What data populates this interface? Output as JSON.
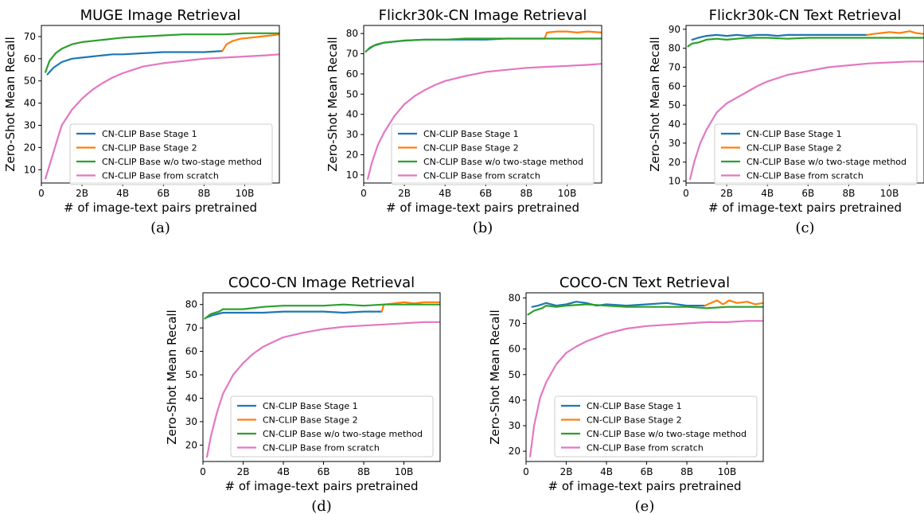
{
  "colors": {
    "stage1": "#1f77b4",
    "stage2": "#ff7f0e",
    "wo": "#2ca02c",
    "scratch": "#e377c2"
  },
  "chart_data": [
    {
      "id": "a",
      "type": "line",
      "title": "MUGE Image Retrieval",
      "caption": "(a)",
      "xlabel": "# of image-text pairs pretrained",
      "ylabel": "Zero-Shot Mean Recall",
      "xlim": [
        0,
        11.7
      ],
      "ylim": [
        4,
        75
      ],
      "xticks": [
        0,
        2,
        4,
        6,
        8,
        10
      ],
      "xtick_labels": [
        "0",
        "2B",
        "4B",
        "6B",
        "8B",
        "10B"
      ],
      "yticks": [
        10,
        20,
        30,
        40,
        50,
        60,
        70
      ],
      "ytick_labels": [
        "10",
        "20",
        "30",
        "40",
        "50",
        "60",
        "70"
      ],
      "grid": false,
      "legend_position": "lower-center",
      "series": [
        {
          "name": "CN-CLIP Base Stage 1",
          "color_key": "stage1",
          "x": [
            0.3,
            0.6,
            1.0,
            1.5,
            2.0,
            2.5,
            3.0,
            3.5,
            4.0,
            5.0,
            6.0,
            7.0,
            8.0,
            8.9
          ],
          "y": [
            53,
            56,
            58.5,
            60,
            60.5,
            61,
            61.5,
            62,
            62,
            62.5,
            63,
            63,
            63,
            63.5
          ]
        },
        {
          "name": "CN-CLIP Base Stage 2",
          "color_key": "stage2",
          "x": [
            8.9,
            9.1,
            9.4,
            9.8,
            10.3,
            10.8,
            11.3,
            11.7
          ],
          "y": [
            63.5,
            66.5,
            68,
            69,
            69.5,
            70,
            70.5,
            71
          ]
        },
        {
          "name": "CN-CLIP Base w/o two-stage method",
          "color_key": "wo",
          "x": [
            0.2,
            0.4,
            0.7,
            1.0,
            1.5,
            2.0,
            3.0,
            4.0,
            5.0,
            6.0,
            7.0,
            8.0,
            9.0,
            10.0,
            11.0,
            11.7
          ],
          "y": [
            54,
            59,
            62.5,
            64.5,
            66.5,
            67.5,
            68.5,
            69.5,
            70,
            70.5,
            71,
            71,
            71,
            71.5,
            71.5,
            71.5
          ]
        },
        {
          "name": "CN-CLIP Base from scratch",
          "color_key": "scratch",
          "x": [
            0.2,
            0.5,
            0.8,
            1.0,
            1.5,
            2.0,
            2.5,
            3.0,
            3.5,
            4.0,
            4.5,
            5.0,
            6.0,
            7.0,
            8.0,
            9.0,
            10.0,
            11.0,
            11.7
          ],
          "y": [
            6,
            15,
            24,
            30,
            37,
            42,
            46,
            49,
            51.5,
            53.5,
            55,
            56.5,
            58,
            59,
            60,
            60.5,
            61,
            61.5,
            62
          ]
        }
      ]
    },
    {
      "id": "b",
      "type": "line",
      "title": "Flickr30k-CN Image Retrieval",
      "caption": "(b)",
      "xlabel": "# of image-text pairs pretrained",
      "ylabel": "Zero-Shot Mean Recall",
      "xlim": [
        0,
        11.7
      ],
      "ylim": [
        6,
        84
      ],
      "xticks": [
        0,
        2,
        4,
        6,
        8,
        10
      ],
      "xtick_labels": [
        "0",
        "2B",
        "4B",
        "6B",
        "8B",
        "10B"
      ],
      "yticks": [
        10,
        20,
        30,
        40,
        50,
        60,
        70,
        80
      ],
      "ytick_labels": [
        "10",
        "20",
        "30",
        "40",
        "50",
        "60",
        "70",
        "80"
      ],
      "grid": false,
      "legend_position": "lower-center",
      "series": [
        {
          "name": "CN-CLIP Base Stage 1",
          "color_key": "stage1",
          "x": [
            0.2,
            0.5,
            1.0,
            1.5,
            2.0,
            3.0,
            4.0,
            5.0,
            6.0,
            7.0,
            8.0,
            8.9
          ],
          "y": [
            72,
            74,
            75.5,
            76,
            76.5,
            77,
            77,
            77,
            77,
            77.5,
            77.5,
            77.5
          ]
        },
        {
          "name": "CN-CLIP Base Stage 2",
          "color_key": "stage2",
          "x": [
            8.9,
            9.0,
            9.5,
            10.0,
            10.5,
            11.0,
            11.7
          ],
          "y": [
            77.5,
            80.5,
            81,
            81,
            80.5,
            81,
            80.5
          ]
        },
        {
          "name": "CN-CLIP Base w/o two-stage method",
          "color_key": "wo",
          "x": [
            0.1,
            0.3,
            0.6,
            1.0,
            1.5,
            2.0,
            3.0,
            4.0,
            5.0,
            6.0,
            7.0,
            8.0,
            9.0,
            10.0,
            11.0,
            11.7
          ],
          "y": [
            71,
            73,
            74.5,
            75.5,
            76,
            76.5,
            77,
            77,
            77.5,
            77.5,
            77.5,
            77.5,
            77.5,
            77.5,
            77.5,
            77.5
          ]
        },
        {
          "name": "CN-CLIP Base from scratch",
          "color_key": "scratch",
          "x": [
            0.2,
            0.4,
            0.7,
            1.0,
            1.5,
            2.0,
            2.5,
            3.0,
            3.5,
            4.0,
            5.0,
            6.0,
            7.0,
            8.0,
            9.0,
            10.0,
            11.0,
            11.7
          ],
          "y": [
            8,
            16,
            25,
            31,
            39,
            45,
            49,
            52,
            54.5,
            56.5,
            59,
            61,
            62,
            63,
            63.5,
            64,
            64.5,
            65
          ]
        }
      ]
    },
    {
      "id": "c",
      "type": "line",
      "title": "Flickr30k-CN Text Retrieval",
      "caption": "(c)",
      "xlabel": "# of image-text pairs pretrained",
      "ylabel": "Zero-Shot Mean Recall",
      "xlim": [
        0,
        11.7
      ],
      "ylim": [
        9,
        92
      ],
      "xticks": [
        0,
        2,
        4,
        6,
        8,
        10
      ],
      "xtick_labels": [
        "0",
        "2B",
        "4B",
        "6B",
        "8B",
        "10B"
      ],
      "yticks": [
        10,
        20,
        30,
        40,
        50,
        60,
        70,
        80,
        90
      ],
      "ytick_labels": [
        "10",
        "20",
        "30",
        "40",
        "50",
        "60",
        "70",
        "80",
        "90"
      ],
      "grid": false,
      "legend_position": "lower-center",
      "series": [
        {
          "name": "CN-CLIP Base Stage 1",
          "color_key": "stage1",
          "x": [
            0.3,
            0.6,
            1.0,
            1.5,
            2.0,
            2.5,
            3.0,
            3.5,
            4.0,
            4.5,
            5.0,
            5.5,
            6.0,
            7.0,
            8.0,
            8.9
          ],
          "y": [
            84.5,
            85.5,
            86.5,
            87,
            86.5,
            87,
            86.5,
            87,
            87,
            86.5,
            87,
            87,
            87,
            87,
            87,
            87
          ]
        },
        {
          "name": "CN-CLIP Base Stage 2",
          "color_key": "stage2",
          "x": [
            8.9,
            9.2,
            9.6,
            10.0,
            10.5,
            11.0,
            11.3,
            11.7
          ],
          "y": [
            87,
            87.5,
            88,
            88.5,
            88,
            89,
            88,
            87.5
          ]
        },
        {
          "name": "CN-CLIP Base w/o two-stage method",
          "color_key": "wo",
          "x": [
            0.1,
            0.3,
            0.6,
            1.0,
            1.5,
            2.0,
            2.5,
            3.0,
            4.0,
            5.0,
            6.0,
            7.0,
            8.0,
            9.0,
            10.0,
            11.0,
            11.7
          ],
          "y": [
            81,
            82.5,
            83,
            84.5,
            85,
            84.5,
            85,
            85.5,
            85.5,
            85,
            85.5,
            85.5,
            85.5,
            85.5,
            85.5,
            85.5,
            85.5
          ]
        },
        {
          "name": "CN-CLIP Base from scratch",
          "color_key": "scratch",
          "x": [
            0.2,
            0.4,
            0.7,
            1.0,
            1.5,
            2.0,
            2.5,
            3.0,
            3.5,
            4.0,
            5.0,
            6.0,
            7.0,
            8.0,
            9.0,
            10.0,
            11.0,
            11.7
          ],
          "y": [
            11,
            20,
            30,
            37,
            46,
            51,
            54,
            57,
            60,
            62.5,
            66,
            68,
            70,
            71,
            72,
            72.5,
            73,
            73
          ]
        }
      ]
    },
    {
      "id": "d",
      "type": "line",
      "title": "COCO-CN Image Retrieval",
      "caption": "(d)",
      "xlabel": "# of image-text pairs pretrained",
      "ylabel": "Zero-Shot Mean Recall",
      "xlim": [
        0,
        11.8
      ],
      "ylim": [
        13,
        85
      ],
      "xticks": [
        0,
        2,
        4,
        6,
        8,
        10
      ],
      "xtick_labels": [
        "0",
        "2B",
        "4B",
        "6B",
        "8B",
        "10B"
      ],
      "yticks": [
        20,
        30,
        40,
        50,
        60,
        70,
        80
      ],
      "ytick_labels": [
        "20",
        "30",
        "40",
        "50",
        "60",
        "70",
        "80"
      ],
      "grid": false,
      "legend_position": "lower-center",
      "series": [
        {
          "name": "CN-CLIP Base Stage 1",
          "color_key": "stage1",
          "x": [
            0.2,
            0.5,
            1.0,
            1.5,
            2.0,
            3.0,
            4.0,
            5.0,
            6.0,
            7.0,
            8.0,
            8.9
          ],
          "y": [
            74.5,
            75.5,
            76.5,
            76.5,
            76.5,
            76.5,
            77,
            77,
            77,
            76.5,
            77,
            77
          ]
        },
        {
          "name": "CN-CLIP Base Stage 2",
          "color_key": "stage2",
          "x": [
            8.9,
            9.0,
            9.5,
            10.0,
            10.5,
            11.0,
            11.8
          ],
          "y": [
            77,
            80,
            80.5,
            81,
            80.5,
            81,
            81
          ]
        },
        {
          "name": "CN-CLIP Base w/o two-stage method",
          "color_key": "wo",
          "x": [
            0.1,
            0.4,
            0.8,
            1.0,
            1.5,
            2.0,
            3.0,
            4.0,
            5.0,
            6.0,
            7.0,
            8.0,
            9.0,
            10.0,
            11.0,
            11.8
          ],
          "y": [
            74,
            76,
            77,
            78,
            78,
            78,
            79,
            79.5,
            79.5,
            79.5,
            80,
            79.5,
            80,
            80,
            80,
            80
          ]
        },
        {
          "name": "CN-CLIP Base from scratch",
          "color_key": "scratch",
          "x": [
            0.2,
            0.4,
            0.7,
            1.0,
            1.5,
            2.0,
            2.5,
            3.0,
            3.5,
            4.0,
            5.0,
            6.0,
            7.0,
            8.0,
            9.0,
            10.0,
            11.0,
            11.8
          ],
          "y": [
            15,
            24,
            34,
            42,
            50,
            55,
            59,
            62,
            64,
            66,
            68,
            69.5,
            70.5,
            71,
            71.5,
            72,
            72.5,
            72.5
          ]
        }
      ]
    },
    {
      "id": "e",
      "type": "line",
      "title": "COCO-CN Text Retrieval",
      "caption": "(e)",
      "xlabel": "# of image-text pairs pretrained",
      "ylabel": "Zero-Shot Mean Recall",
      "xlim": [
        0,
        11.8
      ],
      "ylim": [
        16,
        82
      ],
      "xticks": [
        0,
        2,
        4,
        6,
        8,
        10
      ],
      "xtick_labels": [
        "0",
        "2B",
        "4B",
        "6B",
        "8B",
        "10B"
      ],
      "yticks": [
        20,
        30,
        40,
        50,
        60,
        70,
        80
      ],
      "ytick_labels": [
        "20",
        "30",
        "40",
        "50",
        "60",
        "70",
        "80"
      ],
      "grid": false,
      "legend_position": "lower-center",
      "series": [
        {
          "name": "CN-CLIP Base Stage 1",
          "color_key": "stage1",
          "x": [
            0.3,
            0.6,
            1.0,
            1.5,
            2.0,
            2.5,
            3.0,
            3.5,
            4.0,
            5.0,
            6.0,
            7.0,
            8.0,
            8.9
          ],
          "y": [
            76.5,
            77,
            78,
            77,
            77.5,
            78.5,
            78,
            77,
            77.5,
            77,
            77.5,
            78,
            77,
            77
          ]
        },
        {
          "name": "CN-CLIP Base Stage 2",
          "color_key": "stage2",
          "x": [
            8.9,
            9.2,
            9.5,
            9.8,
            10.1,
            10.5,
            11.0,
            11.4,
            11.8
          ],
          "y": [
            77,
            78,
            79,
            77.5,
            79,
            78,
            78.5,
            77.5,
            78
          ]
        },
        {
          "name": "CN-CLIP Base w/o two-stage method",
          "color_key": "wo",
          "x": [
            0.1,
            0.4,
            0.8,
            1.0,
            1.5,
            2.0,
            3.0,
            4.0,
            5.0,
            6.0,
            7.0,
            8.0,
            9.0,
            10.0,
            11.0,
            11.8
          ],
          "y": [
            73.5,
            75,
            76,
            77,
            76.5,
            77,
            77.5,
            77,
            76.5,
            76.5,
            76.5,
            76.5,
            76,
            76.5,
            76.5,
            76.5
          ]
        },
        {
          "name": "CN-CLIP Base from scratch",
          "color_key": "scratch",
          "x": [
            0.2,
            0.4,
            0.7,
            1.0,
            1.5,
            2.0,
            2.5,
            3.0,
            3.5,
            4.0,
            5.0,
            6.0,
            7.0,
            8.0,
            9.0,
            10.0,
            11.0,
            11.8
          ],
          "y": [
            18,
            30,
            41,
            47,
            54,
            58.5,
            61,
            63,
            64.5,
            66,
            68,
            69,
            69.5,
            70,
            70.5,
            70.5,
            71,
            71
          ]
        }
      ]
    }
  ]
}
